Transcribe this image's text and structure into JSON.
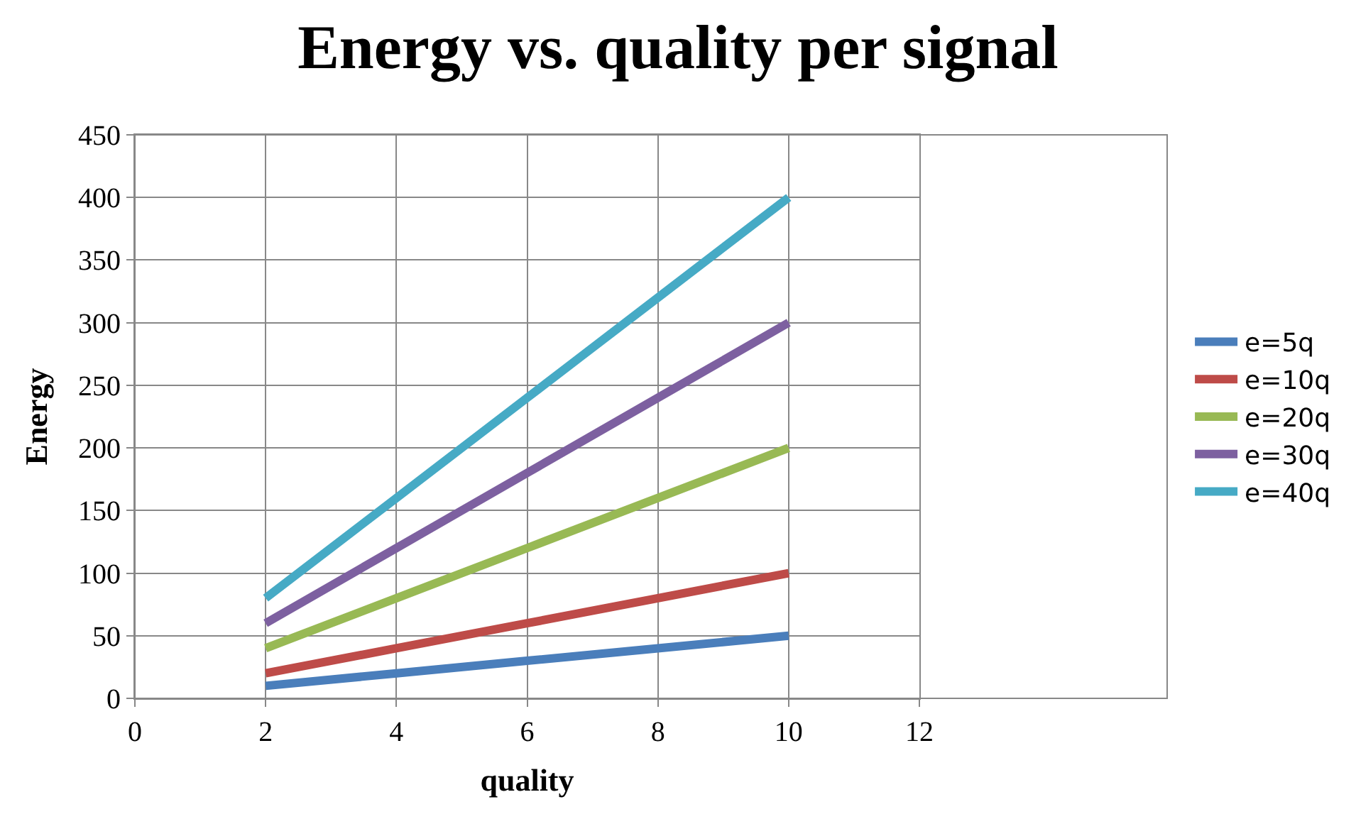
{
  "chart_data": {
    "type": "line",
    "title": "Energy vs. quality per signal",
    "xlabel": "quality",
    "ylabel": "Energy",
    "x": [
      2,
      4,
      6,
      8,
      10
    ],
    "series": [
      {
        "name": "e=5q",
        "color": "#4a7ebb",
        "values": [
          10,
          20,
          30,
          40,
          50
        ]
      },
      {
        "name": "e=10q",
        "color": "#be4b48",
        "values": [
          20,
          40,
          60,
          80,
          100
        ]
      },
      {
        "name": "e=20q",
        "color": "#98b954",
        "values": [
          40,
          80,
          120,
          160,
          200
        ]
      },
      {
        "name": "e=30q",
        "color": "#7d60a0",
        "values": [
          60,
          120,
          180,
          240,
          300
        ]
      },
      {
        "name": "e=40q",
        "color": "#46aac5",
        "values": [
          80,
          160,
          240,
          320,
          400
        ]
      }
    ],
    "xlim": [
      0,
      12
    ],
    "xticks": [
      0,
      2,
      4,
      6,
      8,
      10,
      12
    ],
    "ylim": [
      0,
      450
    ],
    "yticks": [
      0,
      50,
      100,
      150,
      200,
      250,
      300,
      350,
      400,
      450
    ],
    "grid": true,
    "legend": "right",
    "marker": "none",
    "line_style": "solid"
  }
}
